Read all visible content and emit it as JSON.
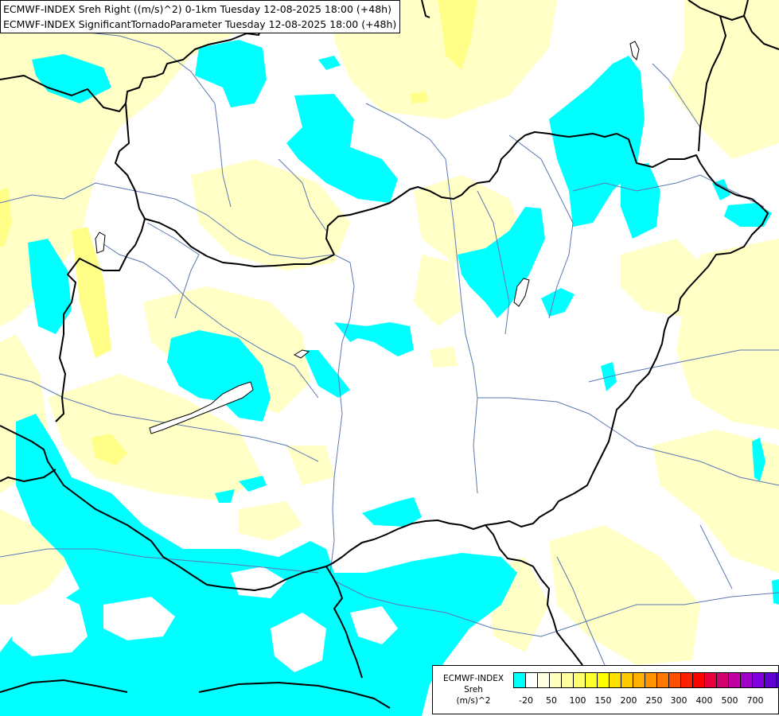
{
  "header": {
    "line1": "ECMWF-INDEX Sreh Right ((m/s)^2) 0-1km Tuesday 12-08-2025 18:00 (+48h)",
    "line2": "ECMWF-INDEX SignificantTornadoParameter Tuesday 12-08-2025 18:00 (+48h)"
  },
  "legend": {
    "title": "ECMWF-INDEX",
    "variable": "Sreh",
    "unit": "(m/s)^2",
    "ticks": [
      "-20",
      "50",
      "100",
      "150",
      "200",
      "250",
      "300",
      "400",
      "500",
      "700"
    ],
    "colors": [
      "#00ffff",
      "#ffffff",
      "#ffffe0",
      "#ffffc0",
      "#ffffa0",
      "#ffff70",
      "#ffff30",
      "#ffff00",
      "#ffe000",
      "#ffc800",
      "#ffb000",
      "#ff9400",
      "#ff7800",
      "#ff5000",
      "#ff2000",
      "#ff0000",
      "#e8003c",
      "#d0006e",
      "#c000a0",
      "#a000c8",
      "#8000e0",
      "#6000d0",
      "#4000b0",
      "#2000a0",
      "#000080"
    ]
  },
  "colors": {
    "low_sreh_fill": "#00ffff",
    "light_yellow_fill": "#ffffc6",
    "yellow_fill": "#ffff88",
    "border_line": "#000000",
    "river_line": "#5a78b4"
  }
}
